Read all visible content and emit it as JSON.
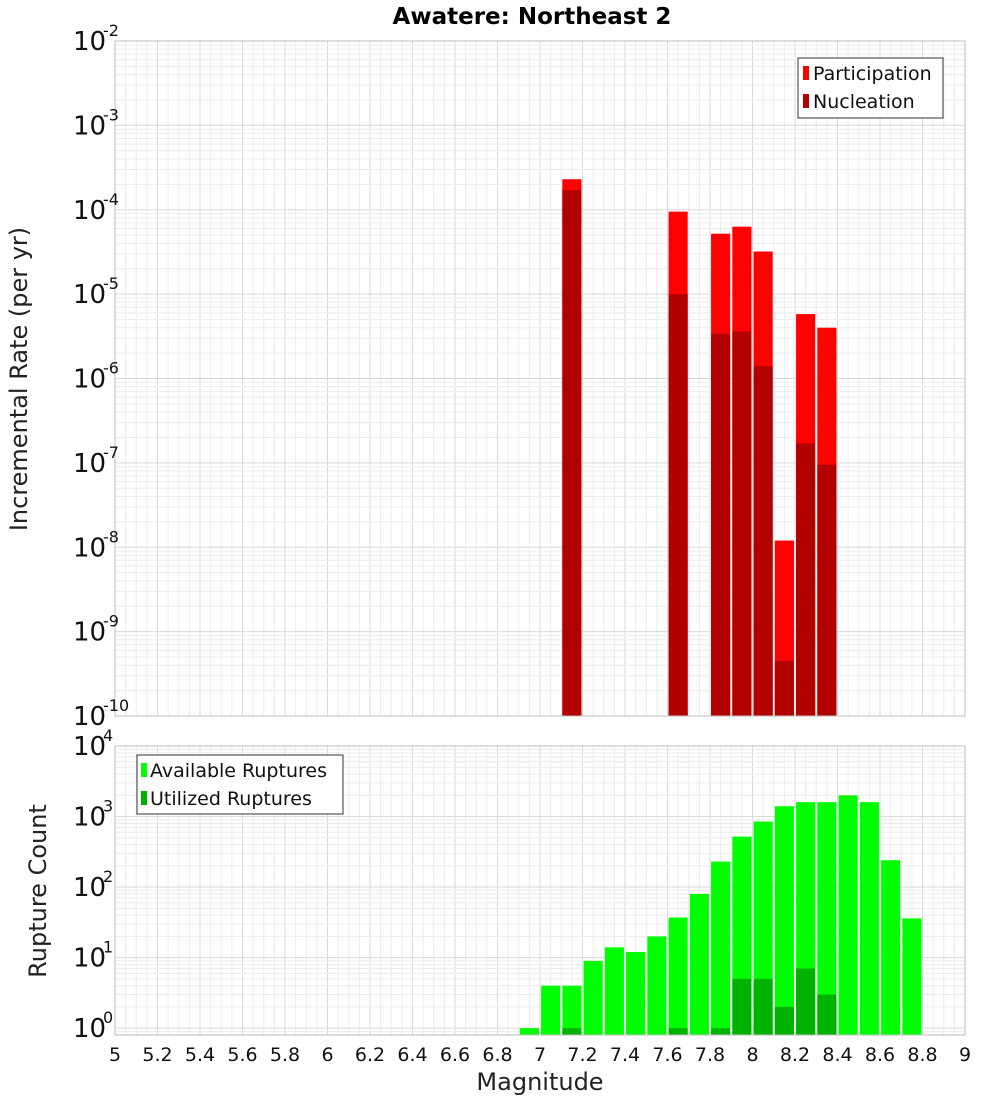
{
  "chart_data": [
    {
      "type": "bar",
      "title": "Awatere: Northeast 2",
      "ylabel": "Incremental Rate (per yr)",
      "yscale": "log",
      "ylim": [
        1e-10,
        0.01
      ],
      "xlim": [
        5,
        9
      ],
      "yticks": [
        {
          "base": "10",
          "exp": "-10",
          "value": 1e-10
        },
        {
          "base": "10",
          "exp": "-9",
          "value": 1e-09
        },
        {
          "base": "10",
          "exp": "-8",
          "value": 1e-08
        },
        {
          "base": "10",
          "exp": "-7",
          "value": 1e-07
        },
        {
          "base": "10",
          "exp": "-6",
          "value": 1e-06
        },
        {
          "base": "10",
          "exp": "-5",
          "value": 1e-05
        },
        {
          "base": "10",
          "exp": "-4",
          "value": 0.0001
        },
        {
          "base": "10",
          "exp": "-3",
          "value": 0.001
        },
        {
          "base": "10",
          "exp": "-2",
          "value": 0.01
        }
      ],
      "legend": {
        "position": "top-right",
        "entries": [
          {
            "label": "Participation",
            "color": "#ff0000"
          },
          {
            "label": "Nucleation",
            "color": "#b20000"
          }
        ]
      },
      "series": [
        {
          "name": "Participation",
          "color": "#ff0000",
          "x": [
            7.15,
            7.65,
            7.85,
            7.95,
            8.05,
            8.15,
            8.25,
            8.35
          ],
          "values": [
            0.00023,
            9.5e-05,
            5.2e-05,
            6.3e-05,
            3.2e-05,
            1.2e-08,
            5.8e-06,
            4e-06
          ]
        },
        {
          "name": "Nucleation",
          "color": "#b20000",
          "x": [
            7.15,
            7.65,
            7.85,
            7.95,
            8.05,
            8.15,
            8.25,
            8.35
          ],
          "values": [
            0.00017,
            1e-05,
            3.4e-06,
            3.6e-06,
            1.4e-06,
            4.5e-10,
            1.7e-07,
            9.5e-08
          ]
        }
      ]
    },
    {
      "type": "bar",
      "xlabel": "Magnitude",
      "ylabel": "Rupture Count",
      "yscale": "log",
      "ylim": [
        0.8,
        10000
      ],
      "xlim": [
        5,
        9
      ],
      "xticks": [
        "5",
        "5.2",
        "5.4",
        "5.6",
        "5.8",
        "6",
        "6.2",
        "6.4",
        "6.6",
        "6.8",
        "7",
        "7.2",
        "7.4",
        "7.6",
        "7.8",
        "8",
        "8.2",
        "8.4",
        "8.6",
        "8.8",
        "9"
      ],
      "yticks": [
        {
          "base": "10",
          "exp": "0",
          "value": 1
        },
        {
          "base": "10",
          "exp": "1",
          "value": 10
        },
        {
          "base": "10",
          "exp": "2",
          "value": 100
        },
        {
          "base": "10",
          "exp": "3",
          "value": 1000
        },
        {
          "base": "10",
          "exp": "4",
          "value": 10000
        }
      ],
      "legend": {
        "position": "top-left",
        "entries": [
          {
            "label": "Available Ruptures",
            "color": "#00ff00"
          },
          {
            "label": "Utilized Ruptures",
            "color": "#00b200"
          }
        ]
      },
      "series": [
        {
          "name": "Available Ruptures",
          "color": "#00ff00",
          "x": [
            6.95,
            7.05,
            7.15,
            7.25,
            7.35,
            7.45,
            7.55,
            7.65,
            7.75,
            7.85,
            7.95,
            8.05,
            8.15,
            8.25,
            8.35,
            8.45,
            8.55,
            8.65,
            8.75
          ],
          "values": [
            1,
            4,
            4,
            9,
            14,
            12,
            20,
            37,
            80,
            230,
            520,
            850,
            1400,
            1600,
            1600,
            2000,
            1600,
            240,
            36
          ]
        },
        {
          "name": "Utilized Ruptures",
          "color": "#00b200",
          "x": [
            7.15,
            7.65,
            7.85,
            7.95,
            8.05,
            8.15,
            8.25,
            8.35
          ],
          "values": [
            1,
            1,
            1,
            5,
            5,
            2,
            7,
            3
          ]
        }
      ]
    }
  ]
}
